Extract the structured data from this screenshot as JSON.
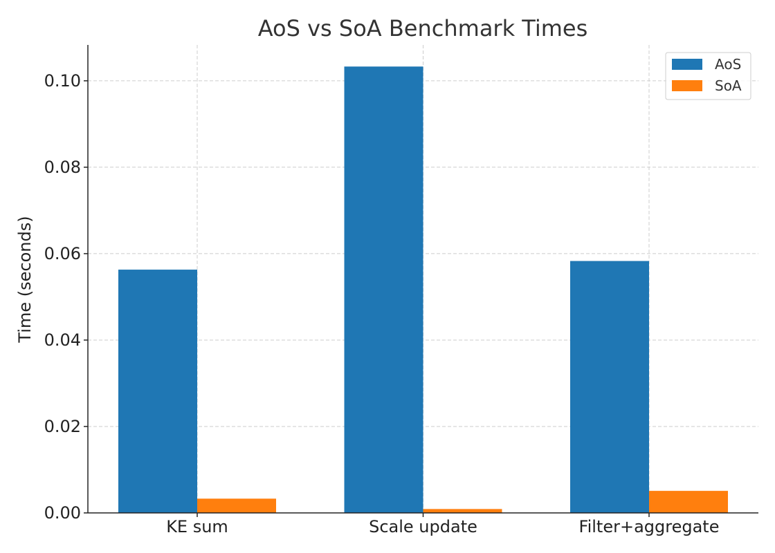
{
  "chart_data": {
    "type": "bar",
    "title": "AoS vs SoA Benchmark Times",
    "xlabel": "",
    "ylabel": "Time (seconds)",
    "categories": [
      "KE sum",
      "Scale update",
      "Filter+aggregate"
    ],
    "series": [
      {
        "name": "AoS",
        "values": [
          0.0563,
          0.1033,
          0.0583
        ],
        "color": "#1f77b4"
      },
      {
        "name": "SoA",
        "values": [
          0.0033,
          0.0009,
          0.0051
        ],
        "color": "#ff7f0e"
      }
    ],
    "ylim": [
      0,
      0.1083
    ],
    "yticks": [
      0.0,
      0.02,
      0.04,
      0.06,
      0.08,
      0.1
    ],
    "ytick_labels": [
      "0.00",
      "0.02",
      "0.04",
      "0.06",
      "0.08",
      "0.10"
    ],
    "grid": true,
    "legend_position": "top-right"
  }
}
